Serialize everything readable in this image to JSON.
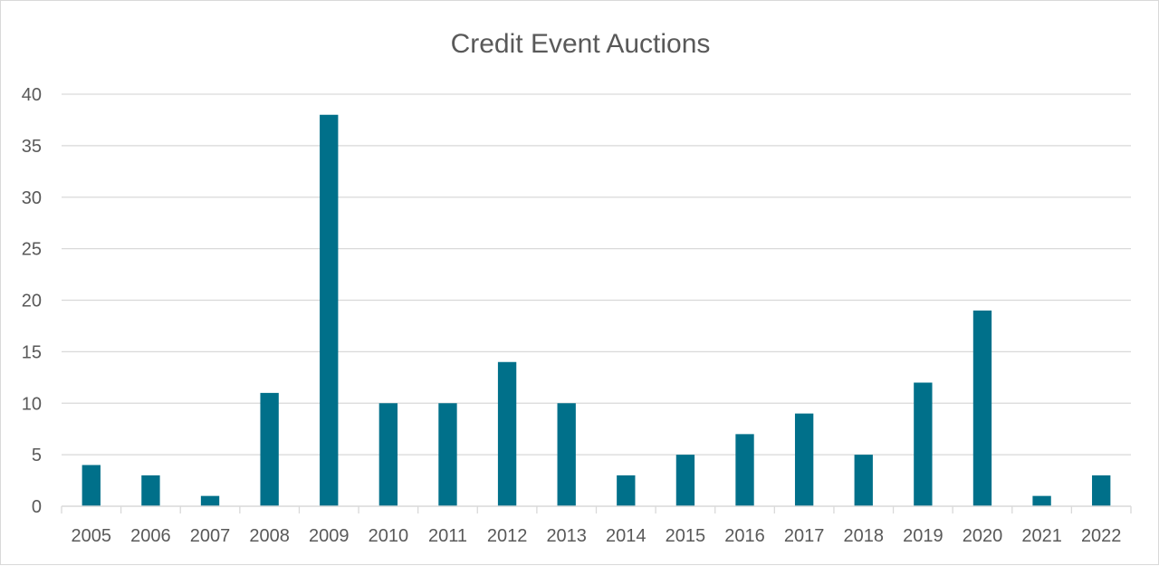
{
  "chart_data": {
    "type": "bar",
    "title": "Credit Event Auctions",
    "xlabel": "",
    "ylabel": "",
    "categories": [
      "2005",
      "2006",
      "2007",
      "2008",
      "2009",
      "2010",
      "2011",
      "2012",
      "2013",
      "2014",
      "2015",
      "2016",
      "2017",
      "2018",
      "2019",
      "2020",
      "2021",
      "2022"
    ],
    "values": [
      4,
      3,
      1,
      11,
      38,
      10,
      10,
      14,
      10,
      3,
      5,
      7,
      9,
      5,
      12,
      19,
      1,
      3
    ],
    "ylim": [
      0,
      40
    ],
    "yticks": [
      "0",
      "5",
      "10",
      "15",
      "20",
      "25",
      "30",
      "35",
      "40"
    ],
    "grid": true,
    "legend": "none",
    "colors": {
      "bar": "#00708a",
      "grid": "#d9d9d9",
      "text": "#595959"
    }
  }
}
